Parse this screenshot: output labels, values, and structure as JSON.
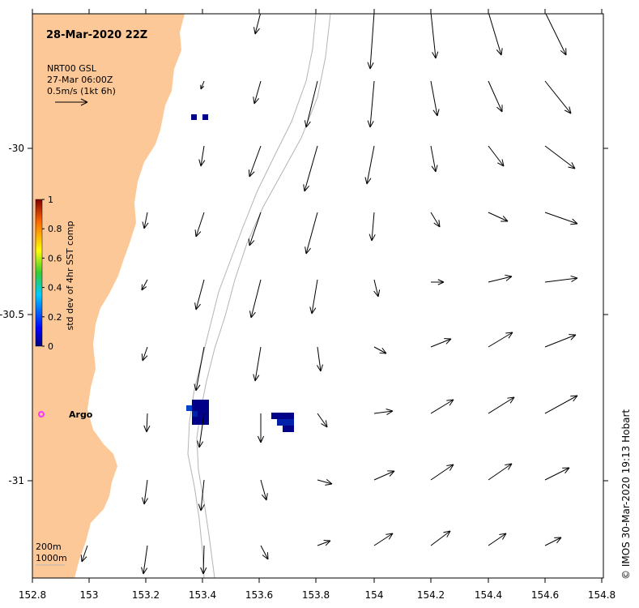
{
  "title": "28-Mar-2020 22Z",
  "legend": {
    "line1": "NRT00 GSL",
    "line2": "27-Mar 06:00Z",
    "line3": "0.5m/s (1kt 6h)"
  },
  "colorbar": {
    "label": "std dev of 4hr SST comp",
    "ticks": [
      "0",
      "0.2",
      "0.4",
      "0.6",
      "0.8",
      "1"
    ]
  },
  "x_ticks": [
    "152.8",
    "153",
    "153.2",
    "153.4",
    "153.6",
    "153.8",
    "154",
    "154.2",
    "154.4",
    "154.6",
    "154.8"
  ],
  "y_ticks": [
    "-30",
    "-30.5",
    "-31"
  ],
  "station": {
    "label": "Argo",
    "color": "#ff33ff"
  },
  "depth_labels": [
    "200m",
    "1000m"
  ],
  "credit": "© IMOS 30-Mar-2020 19:13 Hobart",
  "colors": {
    "land": "#fcc898",
    "isobath": "#b4b4b4",
    "sst_dark": "#000088",
    "sst_mid": "#0044cc"
  }
}
